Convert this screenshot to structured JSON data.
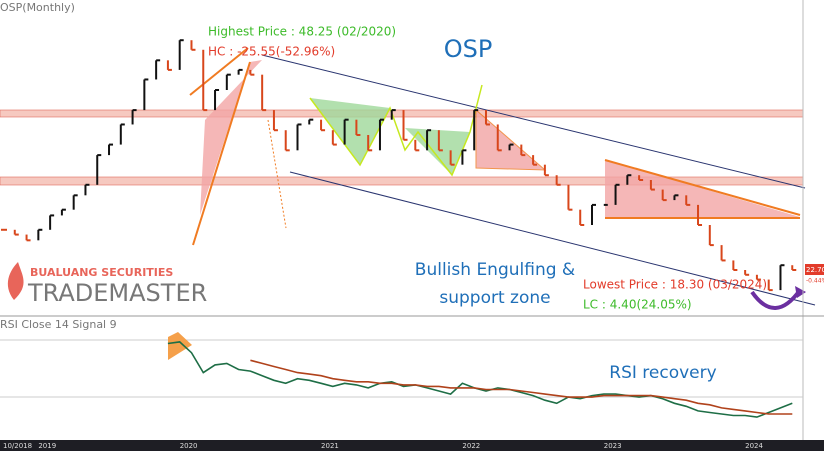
{
  "header": {
    "symbol_label": "OSP(Monthly)",
    "rsi_label": "RSI Close 14 Signal 9"
  },
  "branding": {
    "company": "BUALUANG SECURITIES",
    "product": "TRADEMASTER"
  },
  "chart_data": [
    {
      "type": "ohlc",
      "title": "OSP",
      "categories": [
        "10/2018",
        null,
        null,
        "2019",
        null,
        null,
        null,
        null,
        null,
        null,
        null,
        null,
        null,
        null,
        null,
        "2020",
        null,
        null,
        null,
        null,
        null,
        null,
        null,
        null,
        null,
        null,
        null,
        "2021",
        null,
        null,
        null,
        null,
        null,
        null,
        null,
        null,
        null,
        null,
        null,
        "2022",
        null,
        null,
        null,
        null,
        null,
        null,
        null,
        null,
        null,
        null,
        null,
        "2023",
        null,
        null,
        null,
        null,
        null,
        null,
        null,
        null,
        null,
        null,
        null,
        "2024",
        null,
        null,
        null,
        null
      ],
      "values": [
        26.9,
        26.4,
        25.8,
        26.9,
        28.4,
        29.0,
        30.5,
        31.6,
        34.7,
        35.8,
        37.9,
        39.4,
        42.6,
        44.6,
        43.6,
        46.7,
        45.7,
        39.4,
        41.5,
        43.1,
        43.6,
        43.1,
        39.4,
        37.3,
        35.2,
        37.9,
        38.4,
        37.3,
        35.8,
        38.4,
        36.8,
        35.2,
        38.4,
        39.4,
        36.3,
        35.2,
        37.3,
        35.2,
        33.7,
        35.2,
        39.4,
        37.9,
        35.2,
        35.8,
        34.7,
        33.7,
        32.6,
        31.6,
        29.0,
        27.4,
        29.5,
        29.5,
        31.6,
        32.6,
        32.1,
        31.1,
        30.0,
        30.5,
        29.5,
        27.4,
        25.3,
        23.7,
        22.7,
        22.2,
        21.7,
        20.6,
        23.2,
        22.7
      ],
      "up_color": "#111111",
      "down_color": "#d8461b",
      "ylim": [
        18.0,
        50.9
      ],
      "annotations": {
        "high": "Highest Price : 48.25 (02/2020)",
        "hc": "HC : -25.55(-52.96%)",
        "pattern_1": "Bullish Engulfing &",
        "pattern_2": "support zone",
        "low": "Lowest Price : 18.30 (03/2024)",
        "lc": "LC : 4.40(24.05%)"
      },
      "last_price": {
        "value": 22.7,
        "label": "22.70"
      },
      "change_label": "-0.44%"
    },
    {
      "type": "line",
      "label": "RSI Close 14 Signal 9",
      "annotation": "RSI recovery",
      "series": [
        {
          "color": "#1e6e46",
          "values": [
            null,
            null,
            null,
            null,
            null,
            null,
            null,
            null,
            null,
            null,
            null,
            null,
            null,
            null,
            81,
            82,
            75,
            62,
            67,
            68,
            64,
            63,
            60,
            57,
            55,
            58,
            57,
            55,
            53,
            55,
            54,
            52,
            55,
            56,
            53,
            54,
            52,
            50,
            48,
            55,
            52,
            50,
            52,
            51,
            49,
            47,
            44,
            42,
            46,
            45,
            47,
            48,
            48,
            47,
            46,
            47,
            45,
            42,
            40,
            37,
            36,
            35,
            34,
            34,
            33,
            36,
            39,
            42
          ]
        },
        {
          "color": "#b0421b",
          "values": [
            null,
            null,
            null,
            null,
            null,
            null,
            null,
            null,
            null,
            null,
            null,
            null,
            null,
            null,
            null,
            null,
            null,
            null,
            null,
            null,
            null,
            70,
            68,
            66,
            64,
            62,
            61,
            60,
            58,
            57,
            56,
            56,
            55,
            55,
            54,
            54,
            53,
            53,
            52,
            52,
            52,
            51,
            51,
            51,
            50,
            49,
            48,
            47,
            46,
            46,
            46,
            47,
            47,
            47,
            47,
            47,
            46,
            45,
            44,
            42,
            41,
            39,
            38,
            37,
            36,
            35,
            35,
            35
          ]
        }
      ],
      "ylim": [
        20,
        95
      ]
    }
  ]
}
